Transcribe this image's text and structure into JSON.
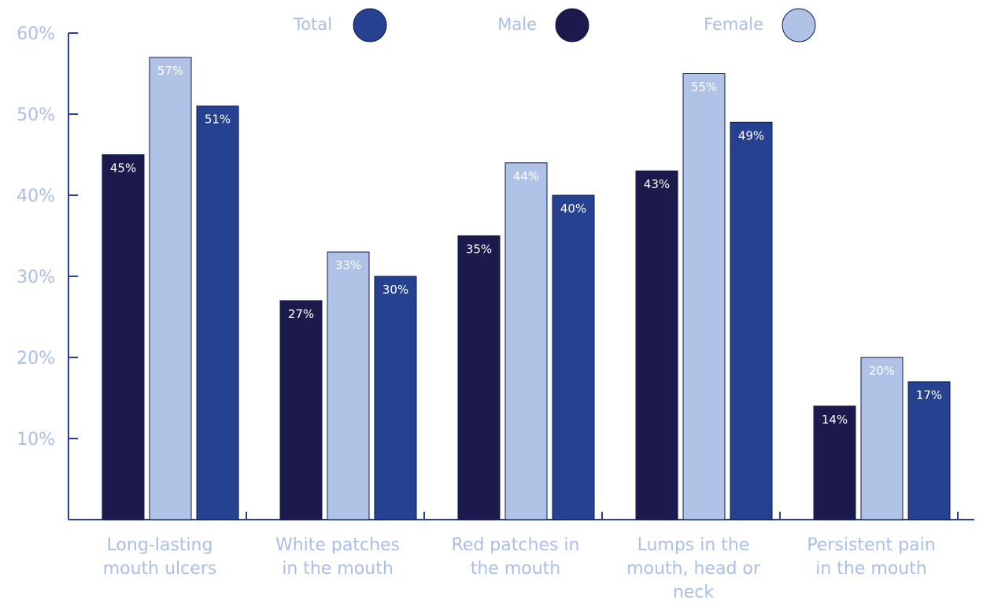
{
  "chart_data": {
    "type": "bar",
    "title": "",
    "xlabel": "",
    "ylabel": "",
    "ylim": [
      0,
      60
    ],
    "yticks": [
      10,
      20,
      30,
      40,
      50,
      60
    ],
    "ytick_labels": [
      "10%",
      "20%",
      "30%",
      "40%",
      "50%",
      "60%"
    ],
    "grid": false,
    "legend_position": "top",
    "categories": [
      [
        "Long-lasting",
        "mouth ulcers"
      ],
      [
        "White patches",
        "in the mouth"
      ],
      [
        "Red patches in",
        "the mouth"
      ],
      [
        "Lumps in the",
        "mouth, head or",
        "neck"
      ],
      [
        "Persistent pain",
        "in the mouth"
      ]
    ],
    "series": [
      {
        "name": "Male",
        "color": "#1c1a4c",
        "label_color": "#ffffff",
        "values": [
          45,
          27,
          35,
          43,
          14
        ],
        "labels": [
          "45%",
          "27%",
          "35%",
          "43%",
          "14%"
        ]
      },
      {
        "name": "Female",
        "color": "#b0c2e6",
        "label_color": "#ffffff",
        "values": [
          57,
          33,
          44,
          55,
          20
        ],
        "labels": [
          "57%",
          "33%",
          "44%",
          "55%",
          "20%"
        ]
      },
      {
        "name": "Total",
        "color": "#25418f",
        "label_color": "#ffffff",
        "values": [
          51,
          30,
          40,
          49,
          17
        ],
        "labels": [
          "51%",
          "30%",
          "40%",
          "49%",
          "17%"
        ]
      }
    ],
    "legend_order": [
      "Total",
      "Male",
      "Female"
    ]
  },
  "colors": {
    "axis": "#25418f",
    "text": "#a9bfe6",
    "bar_outline": "#0f1a4d"
  }
}
